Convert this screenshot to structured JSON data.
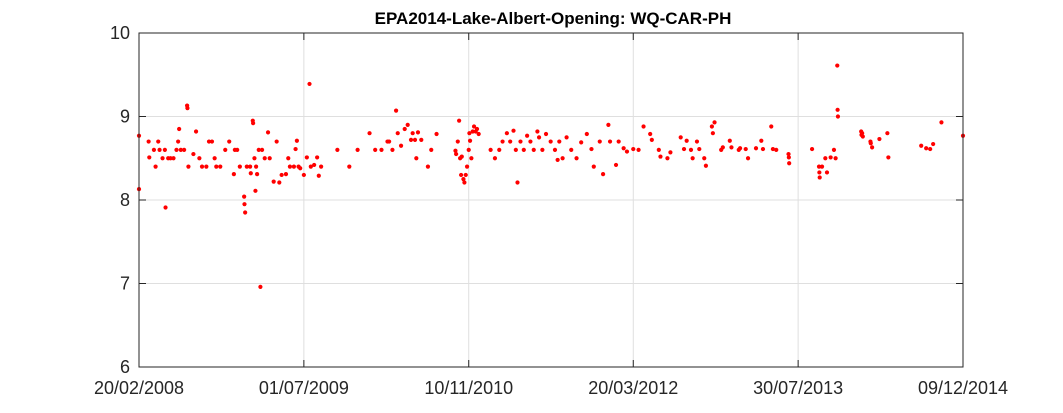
{
  "chart_data": {
    "type": "scatter",
    "title": "EPA2014-Lake-Albert-Opening: WQ-CAR-PH",
    "xlabel": "",
    "ylabel": "",
    "x_axis_type": "date",
    "xlim": [
      "2008-02-20",
      "2014-12-09"
    ],
    "ylim": [
      6,
      10
    ],
    "grid": true,
    "legend": "none",
    "x_ticks": [
      {
        "date": "2008-02-20",
        "label": "20/02/2008"
      },
      {
        "date": "2009-07-01",
        "label": "01/07/2009"
      },
      {
        "date": "2010-11-10",
        "label": "10/11/2010"
      },
      {
        "date": "2012-03-20",
        "label": "20/03/2012"
      },
      {
        "date": "2013-07-30",
        "label": "30/07/2013"
      },
      {
        "date": "2014-12-09",
        "label": "09/12/2014"
      }
    ],
    "y_ticks": [
      {
        "value": 6,
        "label": "6"
      },
      {
        "value": 7,
        "label": "7"
      },
      {
        "value": 8,
        "label": "8"
      },
      {
        "value": 9,
        "label": "9"
      },
      {
        "value": 10,
        "label": "10"
      }
    ],
    "marker_color": "#ff0000",
    "axis_color": "#262626",
    "grid_color": "#dfdfdf",
    "series": [
      {
        "points": [
          [
            "2008-02-20",
            8.77
          ],
          [
            "2008-02-20",
            8.13
          ],
          [
            "2008-03-20",
            8.7
          ],
          [
            "2008-03-22",
            8.51
          ],
          [
            "2008-04-05",
            8.6
          ],
          [
            "2008-04-10",
            8.4
          ],
          [
            "2008-04-18",
            8.7
          ],
          [
            "2008-04-22",
            8.6
          ],
          [
            "2008-05-01",
            8.5
          ],
          [
            "2008-05-08",
            8.6
          ],
          [
            "2008-05-10",
            7.91
          ],
          [
            "2008-05-18",
            8.5
          ],
          [
            "2008-05-25",
            8.5
          ],
          [
            "2008-06-03",
            8.5
          ],
          [
            "2008-06-12",
            8.6
          ],
          [
            "2008-06-17",
            8.7
          ],
          [
            "2008-06-20",
            8.85
          ],
          [
            "2008-06-25",
            8.6
          ],
          [
            "2008-07-05",
            8.6
          ],
          [
            "2008-07-14",
            9.13
          ],
          [
            "2008-07-15",
            9.1
          ],
          [
            "2008-07-18",
            8.4
          ],
          [
            "2008-08-02",
            8.55
          ],
          [
            "2008-08-10",
            8.82
          ],
          [
            "2008-08-20",
            8.5
          ],
          [
            "2008-08-28",
            8.4
          ],
          [
            "2008-09-10",
            8.4
          ],
          [
            "2008-09-18",
            8.7
          ],
          [
            "2008-09-27",
            8.7
          ],
          [
            "2008-10-05",
            8.5
          ],
          [
            "2008-10-10",
            8.4
          ],
          [
            "2008-10-22",
            8.4
          ],
          [
            "2008-11-06",
            8.6
          ],
          [
            "2008-11-18",
            8.7
          ],
          [
            "2008-12-02",
            8.31
          ],
          [
            "2008-12-05",
            8.6
          ],
          [
            "2008-12-12",
            8.6
          ],
          [
            "2008-12-20",
            8.4
          ],
          [
            "2009-01-02",
            8.04
          ],
          [
            "2009-01-03",
            7.95
          ],
          [
            "2009-01-05",
            7.85
          ],
          [
            "2009-01-10",
            8.4
          ],
          [
            "2009-01-20",
            8.4
          ],
          [
            "2009-01-22",
            8.32
          ],
          [
            "2009-01-28",
            8.95
          ],
          [
            "2009-01-29",
            8.92
          ],
          [
            "2009-02-02",
            8.5
          ],
          [
            "2009-02-05",
            8.11
          ],
          [
            "2009-02-07",
            8.4
          ],
          [
            "2009-02-10",
            8.31
          ],
          [
            "2009-02-15",
            8.6
          ],
          [
            "2009-02-20",
            6.96
          ],
          [
            "2009-02-25",
            8.6
          ],
          [
            "2009-03-05",
            8.5
          ],
          [
            "2009-03-15",
            8.81
          ],
          [
            "2009-03-20",
            8.5
          ],
          [
            "2009-04-01",
            8.22
          ],
          [
            "2009-04-10",
            8.7
          ],
          [
            "2009-04-18",
            8.21
          ],
          [
            "2009-04-25",
            8.3
          ],
          [
            "2009-05-08",
            8.31
          ],
          [
            "2009-05-15",
            8.5
          ],
          [
            "2009-05-20",
            8.4
          ],
          [
            "2009-06-01",
            8.4
          ],
          [
            "2009-06-06",
            8.61
          ],
          [
            "2009-06-10",
            8.71
          ],
          [
            "2009-06-15",
            8.4
          ],
          [
            "2009-06-20",
            8.38
          ],
          [
            "2009-07-01",
            8.3
          ],
          [
            "2009-07-10",
            8.51
          ],
          [
            "2009-07-18",
            9.39
          ],
          [
            "2009-07-22",
            8.4
          ],
          [
            "2009-08-01",
            8.42
          ],
          [
            "2009-08-10",
            8.51
          ],
          [
            "2009-08-15",
            8.29
          ],
          [
            "2009-08-22",
            8.4
          ],
          [
            "2009-10-10",
            8.6
          ],
          [
            "2009-11-15",
            8.4
          ],
          [
            "2009-12-10",
            8.6
          ],
          [
            "2010-01-15",
            8.8
          ],
          [
            "2010-02-01",
            8.6
          ],
          [
            "2010-02-20",
            8.6
          ],
          [
            "2010-03-10",
            8.7
          ],
          [
            "2010-03-15",
            8.7
          ],
          [
            "2010-03-25",
            8.6
          ],
          [
            "2010-04-05",
            9.07
          ],
          [
            "2010-04-10",
            8.8
          ],
          [
            "2010-04-20",
            8.65
          ],
          [
            "2010-05-01",
            8.85
          ],
          [
            "2010-05-10",
            8.9
          ],
          [
            "2010-05-20",
            8.72
          ],
          [
            "2010-05-25",
            8.8
          ],
          [
            "2010-06-01",
            8.72
          ],
          [
            "2010-06-05",
            8.5
          ],
          [
            "2010-06-10",
            8.81
          ],
          [
            "2010-06-20",
            8.72
          ],
          [
            "2010-07-10",
            8.4
          ],
          [
            "2010-07-20",
            8.6
          ],
          [
            "2010-08-05",
            8.79
          ],
          [
            "2010-10-01",
            8.59
          ],
          [
            "2010-10-03",
            8.55
          ],
          [
            "2010-10-08",
            8.7
          ],
          [
            "2010-10-12",
            8.95
          ],
          [
            "2010-10-15",
            8.5
          ],
          [
            "2010-10-18",
            8.3
          ],
          [
            "2010-10-20",
            8.52
          ],
          [
            "2010-10-25",
            8.25
          ],
          [
            "2010-10-28",
            8.21
          ],
          [
            "2010-11-01",
            8.3
          ],
          [
            "2010-11-05",
            8.4
          ],
          [
            "2010-11-10",
            8.6
          ],
          [
            "2010-11-12",
            8.8
          ],
          [
            "2010-11-14",
            8.71
          ],
          [
            "2010-11-18",
            8.5
          ],
          [
            "2010-11-22",
            8.82
          ],
          [
            "2010-11-26",
            8.88
          ],
          [
            "2010-12-01",
            8.82
          ],
          [
            "2010-12-05",
            8.85
          ],
          [
            "2010-12-10",
            8.79
          ],
          [
            "2011-01-15",
            8.6
          ],
          [
            "2011-01-28",
            8.5
          ],
          [
            "2011-02-10",
            8.6
          ],
          [
            "2011-02-20",
            8.7
          ],
          [
            "2011-03-05",
            8.8
          ],
          [
            "2011-03-15",
            8.7
          ],
          [
            "2011-03-25",
            8.83
          ],
          [
            "2011-04-01",
            8.6
          ],
          [
            "2011-04-06",
            8.21
          ],
          [
            "2011-04-15",
            8.7
          ],
          [
            "2011-04-25",
            8.6
          ],
          [
            "2011-05-05",
            8.77
          ],
          [
            "2011-05-15",
            8.7
          ],
          [
            "2011-05-25",
            8.6
          ],
          [
            "2011-06-05",
            8.82
          ],
          [
            "2011-06-10",
            8.75
          ],
          [
            "2011-06-20",
            8.6
          ],
          [
            "2011-07-01",
            8.79
          ],
          [
            "2011-07-15",
            8.7
          ],
          [
            "2011-07-28",
            8.6
          ],
          [
            "2011-08-05",
            8.48
          ],
          [
            "2011-08-10",
            8.7
          ],
          [
            "2011-08-20",
            8.5
          ],
          [
            "2011-09-01",
            8.75
          ],
          [
            "2011-09-15",
            8.6
          ],
          [
            "2011-10-01",
            8.5
          ],
          [
            "2011-10-15",
            8.69
          ],
          [
            "2011-11-01",
            8.79
          ],
          [
            "2011-11-15",
            8.61
          ],
          [
            "2011-11-22",
            8.4
          ],
          [
            "2011-12-10",
            8.7
          ],
          [
            "2011-12-20",
            8.31
          ],
          [
            "2012-01-05",
            8.9
          ],
          [
            "2012-01-10",
            8.7
          ],
          [
            "2012-01-28",
            8.42
          ],
          [
            "2012-02-05",
            8.7
          ],
          [
            "2012-02-20",
            8.62
          ],
          [
            "2012-03-01",
            8.58
          ],
          [
            "2012-03-20",
            8.61
          ],
          [
            "2012-04-05",
            8.6
          ],
          [
            "2012-04-20",
            8.88
          ],
          [
            "2012-05-10",
            8.79
          ],
          [
            "2012-05-15",
            8.72
          ],
          [
            "2012-06-05",
            8.6
          ],
          [
            "2012-06-10",
            8.52
          ],
          [
            "2012-07-01",
            8.5
          ],
          [
            "2012-07-10",
            8.57
          ],
          [
            "2012-08-10",
            8.75
          ],
          [
            "2012-08-20",
            8.61
          ],
          [
            "2012-08-28",
            8.71
          ],
          [
            "2012-09-10",
            8.6
          ],
          [
            "2012-09-15",
            8.5
          ],
          [
            "2012-09-28",
            8.7
          ],
          [
            "2012-10-05",
            8.61
          ],
          [
            "2012-10-20",
            8.5
          ],
          [
            "2012-10-25",
            8.41
          ],
          [
            "2012-11-12",
            8.88
          ],
          [
            "2012-11-15",
            8.8
          ],
          [
            "2012-11-20",
            8.93
          ],
          [
            "2012-12-10",
            8.6
          ],
          [
            "2012-12-15",
            8.63
          ],
          [
            "2013-01-05",
            8.71
          ],
          [
            "2013-01-10",
            8.63
          ],
          [
            "2013-02-01",
            8.6
          ],
          [
            "2013-02-05",
            8.62
          ],
          [
            "2013-02-22",
            8.61
          ],
          [
            "2013-03-01",
            8.5
          ],
          [
            "2013-03-25",
            8.62
          ],
          [
            "2013-04-10",
            8.71
          ],
          [
            "2013-04-15",
            8.61
          ],
          [
            "2013-05-10",
            8.88
          ],
          [
            "2013-05-15",
            8.61
          ],
          [
            "2013-05-25",
            8.6
          ],
          [
            "2013-07-01",
            8.55
          ],
          [
            "2013-07-02",
            8.51
          ],
          [
            "2013-07-03",
            8.44
          ],
          [
            "2013-09-10",
            8.61
          ],
          [
            "2013-10-01",
            8.4
          ],
          [
            "2013-10-02",
            8.33
          ],
          [
            "2013-10-03",
            8.27
          ],
          [
            "2013-10-10",
            8.4
          ],
          [
            "2013-10-20",
            8.5
          ],
          [
            "2013-10-25",
            8.33
          ],
          [
            "2013-11-05",
            8.51
          ],
          [
            "2013-11-15",
            8.6
          ],
          [
            "2013-11-20",
            8.5
          ],
          [
            "2013-11-25",
            9.61
          ],
          [
            "2013-11-26",
            9.08
          ],
          [
            "2013-11-27",
            9.0
          ],
          [
            "2014-02-05",
            8.82
          ],
          [
            "2014-02-06",
            8.78
          ],
          [
            "2014-02-08",
            8.8
          ],
          [
            "2014-02-10",
            8.76
          ],
          [
            "2014-03-05",
            8.7
          ],
          [
            "2014-03-06",
            8.68
          ],
          [
            "2014-03-10",
            8.63
          ],
          [
            "2014-04-01",
            8.73
          ],
          [
            "2014-04-25",
            8.8
          ],
          [
            "2014-04-28",
            8.51
          ],
          [
            "2014-08-05",
            8.65
          ],
          [
            "2014-08-20",
            8.62
          ],
          [
            "2014-09-01",
            8.61
          ],
          [
            "2014-09-10",
            8.67
          ],
          [
            "2014-10-05",
            8.93
          ],
          [
            "2014-12-09",
            8.77
          ]
        ]
      }
    ]
  }
}
